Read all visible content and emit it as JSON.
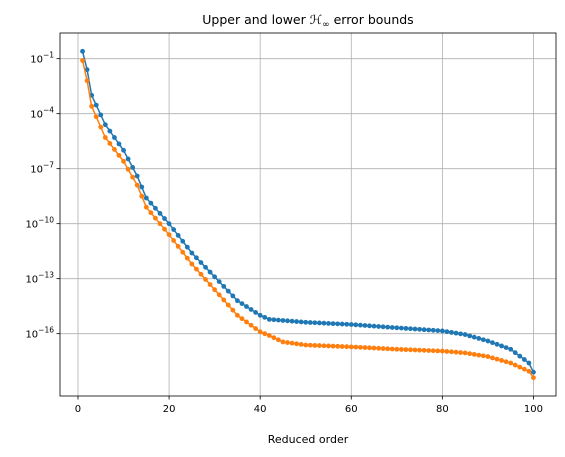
{
  "chart_data": {
    "type": "line",
    "title": "Upper and lower ℋ∞ error bounds",
    "title_parts": {
      "before": "Upper and lower ",
      "symbol": "ℋ",
      "subscript": "∞",
      "after": " error bounds"
    },
    "xlabel": "Reduced order",
    "ylabel": "",
    "xlim": [
      -3.95,
      104.95
    ],
    "ylim_log10": [
      -19.4,
      0.4
    ],
    "y_scale": "log",
    "grid": true,
    "x_ticks": [
      0,
      20,
      40,
      60,
      80,
      100
    ],
    "x_tick_labels": [
      "0",
      "20",
      "40",
      "60",
      "80",
      "100"
    ],
    "y_ticks_log10": [
      -1,
      -4,
      -7,
      -10,
      -13,
      -16
    ],
    "y_tick_labels": [
      {
        "base": "10",
        "exp": "−1"
      },
      {
        "base": "10",
        "exp": "−4"
      },
      {
        "base": "10",
        "exp": "−7"
      },
      {
        "base": "10",
        "exp": "−10"
      },
      {
        "base": "10",
        "exp": "−13"
      },
      {
        "base": "10",
        "exp": "−16"
      }
    ],
    "x": [
      1,
      100
    ],
    "series": [
      {
        "color": "#1f77b4",
        "log10_y_knots": [
          [
            1,
            -0.6
          ],
          [
            2,
            -1.6
          ],
          [
            3,
            -3.0
          ],
          [
            6,
            -4.6
          ],
          [
            10,
            -6.0
          ],
          [
            13,
            -7.4
          ],
          [
            15,
            -8.6
          ],
          [
            20,
            -10.0
          ],
          [
            25,
            -11.6
          ],
          [
            30,
            -12.9
          ],
          [
            35,
            -14.2
          ],
          [
            40,
            -15.0
          ],
          [
            42,
            -15.22
          ],
          [
            50,
            -15.38
          ],
          [
            60,
            -15.5
          ],
          [
            70,
            -15.68
          ],
          [
            80,
            -15.85
          ],
          [
            85,
            -16.05
          ],
          [
            90,
            -16.4
          ],
          [
            95,
            -16.85
          ],
          [
            99,
            -17.6
          ],
          [
            100,
            -18.1
          ]
        ]
      },
      {
        "color": "#ff7f0e",
        "log10_y_knots": [
          [
            1,
            -1.1
          ],
          [
            2,
            -2.2
          ],
          [
            3,
            -3.6
          ],
          [
            6,
            -5.3
          ],
          [
            10,
            -6.6
          ],
          [
            13,
            -7.9
          ],
          [
            15,
            -9.1
          ],
          [
            20,
            -10.6
          ],
          [
            25,
            -12.2
          ],
          [
            30,
            -13.6
          ],
          [
            35,
            -15.0
          ],
          [
            40,
            -15.9
          ],
          [
            42,
            -16.1
          ],
          [
            45,
            -16.45
          ],
          [
            50,
            -16.62
          ],
          [
            60,
            -16.72
          ],
          [
            70,
            -16.85
          ],
          [
            80,
            -16.95
          ],
          [
            85,
            -17.05
          ],
          [
            90,
            -17.25
          ],
          [
            95,
            -17.6
          ],
          [
            99,
            -18.05
          ],
          [
            100,
            -18.4
          ]
        ]
      }
    ]
  }
}
